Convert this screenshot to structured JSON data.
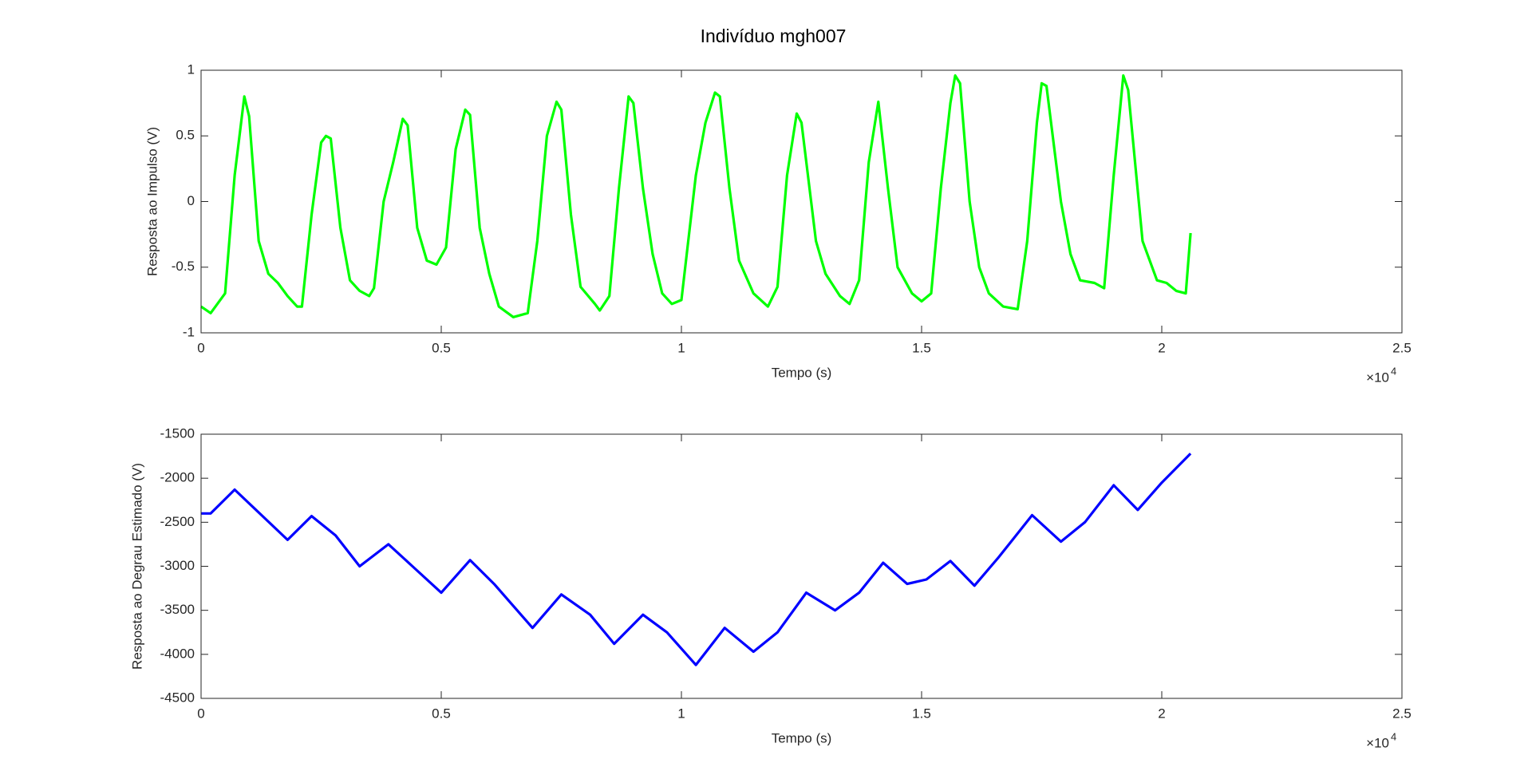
{
  "title": "Indivíduo mgh007",
  "chart_data": [
    {
      "type": "line",
      "xlabel": "Tempo (s)",
      "ylabel": "Resposta ao Impulso (V)",
      "x_multiplier": "×10",
      "x_multiplier_exponent": "4",
      "xlim": [
        0,
        25000
      ],
      "xticks": [
        0,
        {
          "value": 5000,
          "label": "0.5"
        },
        {
          "value": 10000,
          "label": "1"
        },
        {
          "value": 15000,
          "label": "1.5"
        },
        {
          "value": 20000,
          "label": "2"
        },
        {
          "value": 25000,
          "label": "2.5"
        }
      ],
      "ylim": [
        -1,
        1
      ],
      "yticks": [
        -1,
        -0.5,
        0,
        0.5,
        1
      ],
      "series": [
        {
          "color": "#00ff00",
          "x": [
            0,
            200,
            500,
            700,
            900,
            1000,
            1200,
            1400,
            1600,
            1800,
            2000,
            2100,
            2300,
            2500,
            2600,
            2700,
            2900,
            3100,
            3300,
            3500,
            3600,
            3800,
            4000,
            4200,
            4300,
            4500,
            4700,
            4900,
            5100,
            5300,
            5500,
            5600,
            5800,
            6000,
            6200,
            6500,
            6800,
            7000,
            7200,
            7400,
            7500,
            7700,
            7900,
            8200,
            8300,
            8500,
            8700,
            8900,
            9000,
            9200,
            9400,
            9600,
            9800,
            10000,
            10300,
            10500,
            10700,
            10800,
            11000,
            11200,
            11500,
            11800,
            12000,
            12200,
            12400,
            12500,
            12800,
            13000,
            13300,
            13500,
            13700,
            13900,
            14100,
            14300,
            14500,
            14800,
            15000,
            15200,
            15400,
            15600,
            15700,
            15800,
            16000,
            16200,
            16400,
            16700,
            17000,
            17200,
            17400,
            17500,
            17600,
            17900,
            18100,
            18300,
            18600,
            18800,
            19000,
            19200,
            19300,
            19600,
            19900,
            20100,
            20300,
            20500,
            20600
          ],
          "values": [
            -0.8,
            -0.85,
            -0.7,
            0.2,
            0.8,
            0.65,
            -0.3,
            -0.55,
            -0.62,
            -0.72,
            -0.8,
            -0.8,
            -0.1,
            0.45,
            0.5,
            0.48,
            -0.2,
            -0.6,
            -0.68,
            -0.72,
            -0.66,
            0.0,
            0.3,
            0.63,
            0.58,
            -0.2,
            -0.45,
            -0.48,
            -0.35,
            0.4,
            0.7,
            0.66,
            -0.2,
            -0.55,
            -0.8,
            -0.88,
            -0.85,
            -0.3,
            0.5,
            0.76,
            0.7,
            -0.1,
            -0.65,
            -0.78,
            -0.83,
            -0.72,
            0.1,
            0.8,
            0.75,
            0.1,
            -0.4,
            -0.7,
            -0.78,
            -0.75,
            0.2,
            0.6,
            0.83,
            0.8,
            0.1,
            -0.45,
            -0.7,
            -0.8,
            -0.65,
            0.2,
            0.67,
            0.6,
            -0.3,
            -0.55,
            -0.72,
            -0.78,
            -0.6,
            0.3,
            0.76,
            0.1,
            -0.5,
            -0.7,
            -0.76,
            -0.7,
            0.1,
            0.75,
            0.96,
            0.9,
            0.0,
            -0.5,
            -0.7,
            -0.8,
            -0.82,
            -0.3,
            0.6,
            0.9,
            0.88,
            0.0,
            -0.4,
            -0.6,
            -0.62,
            -0.66,
            0.2,
            0.96,
            0.85,
            -0.3,
            -0.6,
            -0.62,
            -0.68,
            -0.7,
            -0.24
          ]
        }
      ]
    },
    {
      "type": "line",
      "xlabel": "Tempo (s)",
      "ylabel": "Resposta ao Degrau Estimado (V)",
      "x_multiplier": "×10",
      "x_multiplier_exponent": "4",
      "xlim": [
        0,
        25000
      ],
      "xticks": [
        0,
        {
          "value": 5000,
          "label": "0.5"
        },
        {
          "value": 10000,
          "label": "1"
        },
        {
          "value": 15000,
          "label": "1.5"
        },
        {
          "value": 20000,
          "label": "2"
        },
        {
          "value": 25000,
          "label": "2.5"
        }
      ],
      "ylim": [
        -4500,
        -1500
      ],
      "yticks": [
        -4500,
        -4000,
        -3500,
        -3000,
        -2500,
        -2000,
        -1500
      ],
      "series": [
        {
          "color": "#0000ff",
          "x": [
            0,
            200,
            700,
            1800,
            2300,
            2800,
            3300,
            3900,
            4400,
            5000,
            5600,
            6100,
            6900,
            7500,
            8100,
            8600,
            9200,
            9700,
            10300,
            10900,
            11500,
            12000,
            12600,
            13200,
            13700,
            14200,
            14700,
            15100,
            15600,
            16100,
            16600,
            17300,
            17900,
            18400,
            19000,
            19500,
            20000,
            20600
          ],
          "values": [
            -2400,
            -2400,
            -2130,
            -2700,
            -2430,
            -2650,
            -3000,
            -2750,
            -3000,
            -3300,
            -2930,
            -3200,
            -3700,
            -3320,
            -3550,
            -3880,
            -3550,
            -3750,
            -4120,
            -3700,
            -3970,
            -3750,
            -3300,
            -3500,
            -3300,
            -2960,
            -3200,
            -3150,
            -2940,
            -3220,
            -2900,
            -2420,
            -2720,
            -2500,
            -2080,
            -2360,
            -2050,
            -1720
          ]
        }
      ]
    }
  ]
}
